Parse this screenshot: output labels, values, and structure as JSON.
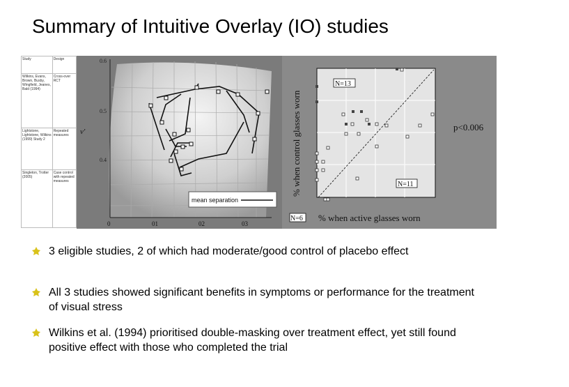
{
  "title": "Summary of Intuitive Overlay (IO) studies",
  "table": {
    "headers": [
      "Study",
      "Design"
    ],
    "rows": [
      {
        "study": "Wilkins, Evans, Brown, Busby, Wingfield, Jeanes, Bald (1994)",
        "design": "Cross-over RCT"
      },
      {
        "study": "Lightstone, Lightstone, Wilkins (1999) Study 2",
        "design": "Repeated measures"
      },
      {
        "study": "Singleton, Trotter (2005)",
        "design": "Case control with repeated measures"
      }
    ]
  },
  "middle_figure": {
    "y_axis_label": "v'",
    "y_ticks": [
      "0.6",
      "0.5",
      "0.4"
    ],
    "x_ticks": [
      "0",
      "01",
      "02",
      "03"
    ],
    "legend_label": "mean separation"
  },
  "right_figure": {
    "y_axis_label": "% when control glasses worn",
    "x_axis_label": "% when active glasses worn",
    "p_value": "p<0.006",
    "annotations": [
      "N=13",
      "N=11",
      "N=6"
    ]
  },
  "bullets": [
    "3 eligible studies, 2 of which had moderate/good control of placebo effect",
    "All 3 studies showed significant benefits in symptoms or performance for the treatment of visual stress",
    "Wilkins et al. (1994) prioritised double-masking over treatment effect, yet still found positive effect with those who completed the trial"
  ],
  "colors": {
    "bullet": "#d9c21a",
    "panel_mid": "#7b7b7b",
    "panel_right": "#8a8a8a"
  }
}
